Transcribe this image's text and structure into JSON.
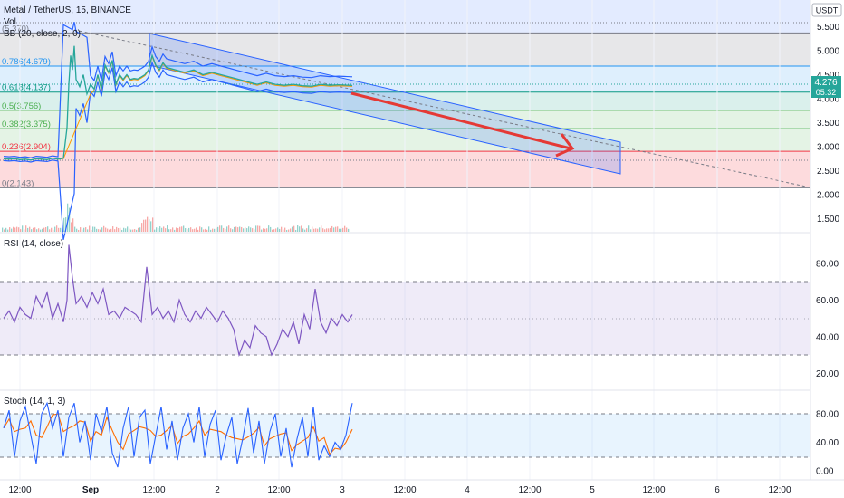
{
  "header": {
    "symbol_line": "Metal / TetherUS, 15, BINANCE",
    "vol_label": "Vol",
    "bb_label": "BB (20, close, 2, 0)",
    "rsi_label": "RSI (14, close)",
    "stoch_label": "Stoch (14, 1, 3)"
  },
  "price_axis": {
    "currency": "USDT",
    "ticks": [
      "5.500",
      "5.000",
      "4.500",
      "4.000",
      "3.500",
      "3.000",
      "2.500",
      "2.000",
      "1.500"
    ],
    "last_price": "4.276",
    "countdown": "05:32"
  },
  "rsi_axis": {
    "ticks": [
      "80.00",
      "60.00",
      "40.00",
      "20.00"
    ]
  },
  "stoch_axis": {
    "ticks": [
      "80.00",
      "40.00",
      "0.00"
    ]
  },
  "time_axis": {
    "labels": [
      "12:00",
      "Sep",
      "12:00",
      "2",
      "12:00",
      "3",
      "12:00",
      "4",
      "12:00",
      "5",
      "12:00",
      "6",
      "12:00"
    ]
  },
  "fib_levels": [
    {
      "label": "(5.370)",
      "value": 5.37,
      "color": "#787b86"
    },
    {
      "label": "0.786(4.679)",
      "value": 4.679,
      "color": "#2196f3"
    },
    {
      "label": "0.618(4.137)",
      "value": 4.137,
      "color": "#089981"
    },
    {
      "label": "0.5(3.756)",
      "value": 3.756,
      "color": "#4caf50"
    },
    {
      "label": "0.382(3.375)",
      "value": 3.375,
      "color": "#4caf50"
    },
    {
      "label": "0.236(2.904)",
      "value": 2.904,
      "color": "#f23645"
    },
    {
      "label": "0(2.143)",
      "value": 2.143,
      "color": "#787b86"
    }
  ],
  "colors": {
    "price_line": "#26a69a",
    "bb_band": "#2962ff",
    "bb_basis": "#ff9800",
    "rsi_line": "#7e57c2",
    "stoch_k": "#2962ff",
    "stoch_d": "#ff6d00",
    "arrow": "#e53935",
    "channel": "#2962ff",
    "last_price_badge": "#26a69a"
  },
  "chart_data": [
    {
      "type": "line",
      "series": [
        {
          "x": [
            0,
            6,
            12,
            18,
            24,
            30,
            36,
            42,
            48,
            54,
            60,
            66,
            70,
            72,
            74,
            76,
            78,
            80,
            84,
            88,
            92,
            96,
            100,
            104,
            108,
            112,
            116,
            120,
            124,
            128,
            132,
            136,
            140,
            144,
            148,
            152,
            156,
            160,
            164,
            168,
            172,
            176,
            180,
            190,
            200,
            210,
            220,
            230,
            240,
            250,
            260,
            270,
            280,
            290,
            300,
            310,
            320,
            330,
            340,
            350,
            360,
            370,
            385
          ],
          "values": [
            2.75,
            2.74,
            2.75,
            2.73,
            2.74,
            2.72,
            2.75,
            2.74,
            2.73,
            2.76,
            2.74,
            2.76,
            3.4,
            4.3,
            4.9,
            4.6,
            5.1,
            4.4,
            4.25,
            4.5,
            4.1,
            4.3,
            4.2,
            4.5,
            4.2,
            4.7,
            4.55,
            4.8,
            4.3,
            4.5,
            4.4,
            4.5,
            4.4,
            4.42,
            4.41,
            4.45,
            4.5,
            4.6,
            4.9,
            4.7,
            4.6,
            4.75,
            4.65,
            4.6,
            4.55,
            4.6,
            4.5,
            4.55,
            4.5,
            4.45,
            4.4,
            4.35,
            4.3,
            4.35,
            4.3,
            4.28,
            4.3,
            4.27,
            4.26,
            4.3,
            4.28,
            4.29,
            4.276
          ]
        }
      ],
      "ylim": [
        1.3,
        5.6
      ]
    },
    {
      "type": "line",
      "title": "RSI (14, close)",
      "series": [
        {
          "x": [
            0,
            6,
            12,
            18,
            24,
            30,
            36,
            42,
            48,
            54,
            60,
            66,
            70,
            72,
            76,
            80,
            86,
            92,
            98,
            104,
            110,
            116,
            122,
            128,
            134,
            140,
            146,
            152,
            158,
            164,
            170,
            176,
            182,
            188,
            194,
            200,
            206,
            212,
            218,
            224,
            230,
            236,
            242,
            248,
            254,
            260,
            266,
            272,
            278,
            284,
            290,
            296,
            302,
            308,
            314,
            320,
            326,
            332,
            338,
            344,
            350,
            356,
            362,
            368,
            374,
            380,
            385
          ],
          "values": [
            50,
            54,
            48,
            56,
            52,
            50,
            62,
            56,
            64,
            50,
            58,
            48,
            60,
            90,
            72,
            58,
            62,
            56,
            64,
            58,
            66,
            52,
            54,
            50,
            56,
            54,
            52,
            48,
            78,
            52,
            56,
            50,
            54,
            48,
            60,
            52,
            48,
            54,
            50,
            56,
            52,
            48,
            54,
            50,
            44,
            30,
            38,
            34,
            46,
            42,
            40,
            30,
            36,
            44,
            40,
            48,
            36,
            52,
            44,
            66,
            48,
            42,
            50,
            46,
            52,
            48,
            52
          ]
        }
      ],
      "ylim": [
        10,
        95
      ]
    },
    {
      "type": "line",
      "title": "Stoch (14, 1, 3)",
      "series": [
        {
          "x": [
            0,
            6,
            12,
            18,
            24,
            30,
            36,
            42,
            48,
            54,
            60,
            66,
            72,
            78,
            84,
            90,
            96,
            102,
            108,
            114,
            120,
            126,
            132,
            138,
            144,
            150,
            156,
            162,
            168,
            174,
            180,
            186,
            192,
            198,
            204,
            210,
            216,
            222,
            228,
            234,
            240,
            246,
            252,
            258,
            264,
            270,
            276,
            282,
            288,
            294,
            300,
            306,
            312,
            318,
            324,
            330,
            336,
            342,
            348,
            354,
            360,
            366,
            372,
            378,
            385
          ],
          "values": [
            60,
            85,
            20,
            70,
            90,
            50,
            10,
            80,
            95,
            60,
            85,
            20,
            75,
            95,
            40,
            70,
            15,
            80,
            55,
            90,
            25,
            5,
            60,
            90,
            20,
            75,
            85,
            10,
            50,
            90,
            30,
            70,
            15,
            60,
            80,
            40,
            90,
            20,
            65,
            85,
            15,
            50,
            75,
            10,
            45,
            88,
            25,
            70,
            10,
            55,
            80,
            20,
            60,
            5,
            45,
            75,
            20,
            90,
            15,
            35,
            20,
            40,
            30,
            50,
            95
          ]
        }
      ],
      "ylim": [
        -5,
        100
      ]
    }
  ]
}
